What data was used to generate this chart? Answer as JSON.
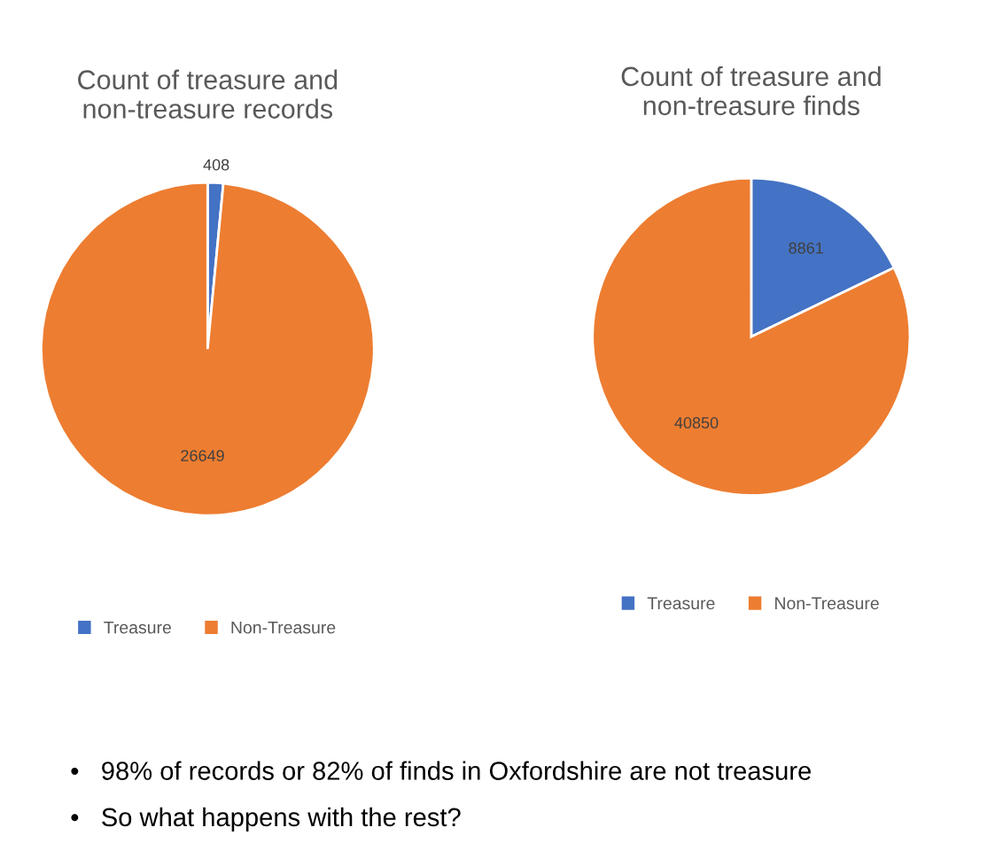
{
  "chart_data": [
    {
      "type": "pie",
      "title": "Count of treasure and\nnon-treasure records",
      "categories": [
        "Treasure",
        "Non-Treasure"
      ],
      "values": [
        408,
        26649
      ],
      "colors": [
        "#4472c4",
        "#ed7d31"
      ],
      "data_labels": true,
      "legend": "bottom"
    },
    {
      "type": "pie",
      "title": "Count of treasure and\nnon-treasure finds",
      "categories": [
        "Treasure",
        "Non-Treasure"
      ],
      "values": [
        8861,
        40850
      ],
      "colors": [
        "#4472c4",
        "#ed7d31"
      ],
      "data_labels": true,
      "legend": "bottom",
      "annotations": [
        "•   98% of records or 82% of finds in Oxfordshire are not treasure",
        "•   So what happens with the rest?"
      ]
    }
  ]
}
